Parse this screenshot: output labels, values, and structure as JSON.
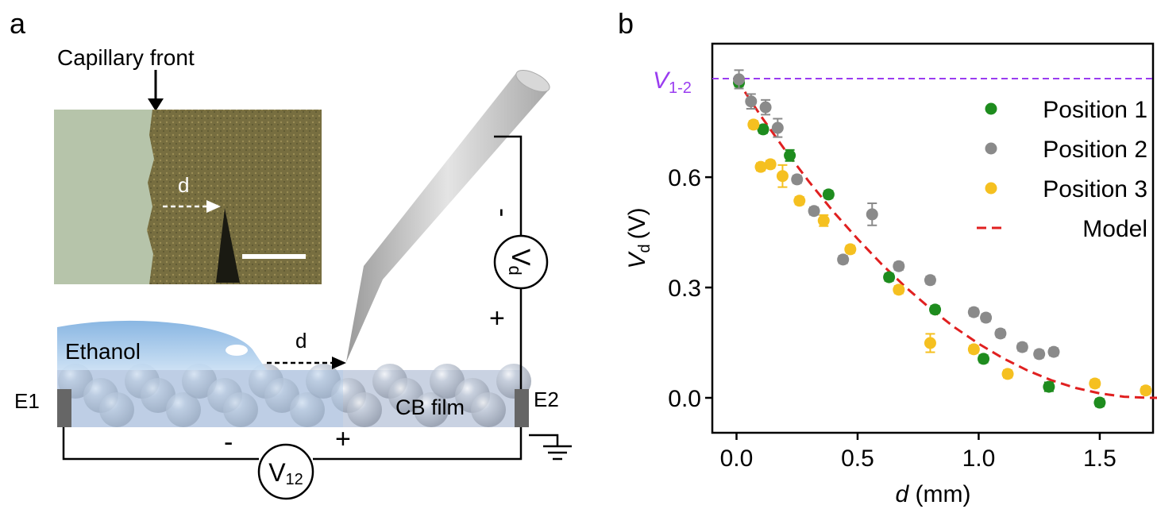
{
  "panel_a": {
    "panel_label": "a",
    "capillary_front": "Capillary front",
    "photo_d": "d",
    "ethanol": "Ethanol",
    "film_d": "d",
    "cb_film": "CB film",
    "e1": "E1",
    "e2": "E2",
    "v12_minus": "-",
    "v12_plus": "+",
    "v12": {
      "symbol": "V",
      "subscript": "12"
    },
    "vd_minus": "-",
    "vd_plus": "+",
    "vd": {
      "symbol": "V",
      "subscript": "d"
    }
  },
  "chart_data": {
    "type": "scatter",
    "panel_label": "b",
    "xlabel": {
      "symbol": "d",
      "unit": "(mm)"
    },
    "ylabel": {
      "symbol": "V",
      "subscript": "d",
      "unit": "(V)"
    },
    "xlim": [
      -0.1,
      1.72
    ],
    "ylim": [
      -0.095,
      0.963
    ],
    "xticks": [
      {
        "value": 0,
        "label": "0.0"
      },
      {
        "value": 0.5,
        "label": "0.5"
      },
      {
        "value": 1,
        "label": "1.0"
      },
      {
        "value": 1.5,
        "label": "1.5"
      }
    ],
    "yticks": [
      {
        "value": 0,
        "label": "0.0"
      },
      {
        "value": 0.3,
        "label": "0.3"
      },
      {
        "value": 0.6,
        "label": "0.6"
      }
    ],
    "reference_line": {
      "symbol": "V",
      "subscript": "1-2",
      "value": 0.868,
      "color": "#9a3cf0"
    },
    "legend_position": "upper right",
    "series": [
      {
        "name": "Position 1",
        "color": "#1e8c1e",
        "style": "markers",
        "x": [
          0.01,
          0.11,
          0.22,
          0.38,
          0.63,
          0.82,
          1.02,
          1.29,
          1.5
        ],
        "values": [
          0.857,
          0.73,
          0.659,
          0.553,
          0.328,
          0.24,
          0.106,
          0.03,
          -0.013
        ],
        "errors": [
          0.01,
          0.01,
          0.015,
          0.01,
          0.01,
          0.01,
          0.01,
          0.012,
          0.01
        ]
      },
      {
        "name": "Position 2",
        "color": "#8a8a8a",
        "style": "markers",
        "x": [
          0.01,
          0.06,
          0.12,
          0.17,
          0.25,
          0.32,
          0.44,
          0.56,
          0.67,
          0.8,
          0.98,
          1.03,
          1.09,
          1.18,
          1.25,
          1.31
        ],
        "values": [
          0.866,
          0.806,
          0.79,
          0.734,
          0.594,
          0.508,
          0.376,
          0.499,
          0.358,
          0.32,
          0.233,
          0.218,
          0.175,
          0.138,
          0.119,
          0.125
        ],
        "errors": [
          0.025,
          0.02,
          0.02,
          0.025,
          0.01,
          0.01,
          0.01,
          0.03,
          0.01,
          0.01,
          0.01,
          0.01,
          0.01,
          0.01,
          0.01,
          0.01
        ]
      },
      {
        "name": "Position 3",
        "color": "#f5c020",
        "style": "markers",
        "x": [
          0.07,
          0.1,
          0.14,
          0.19,
          0.26,
          0.36,
          0.47,
          0.67,
          0.8,
          0.98,
          1.12,
          1.48,
          1.69
        ],
        "values": [
          0.743,
          0.628,
          0.635,
          0.603,
          0.536,
          0.482,
          0.404,
          0.294,
          0.149,
          0.132,
          0.065,
          0.039,
          0.02
        ],
        "errors": [
          0.01,
          0.01,
          0.01,
          0.03,
          0.01,
          0.015,
          0.01,
          0.01,
          0.025,
          0.01,
          0.01,
          0.01,
          0.01
        ]
      },
      {
        "name": "Model",
        "color": "#e02020",
        "style": "dashed",
        "x": [
          0,
          0.1,
          0.2,
          0.3,
          0.4,
          0.5,
          0.6,
          0.7,
          0.8,
          0.9,
          1.0,
          1.1,
          1.2,
          1.3,
          1.4,
          1.5,
          1.6,
          1.7,
          1.75
        ],
        "values": [
          0.866,
          0.767,
          0.674,
          0.587,
          0.506,
          0.432,
          0.363,
          0.3,
          0.243,
          0.192,
          0.147,
          0.108,
          0.075,
          0.048,
          0.027,
          0.012,
          0.003,
          0,
          0
        ]
      }
    ]
  }
}
